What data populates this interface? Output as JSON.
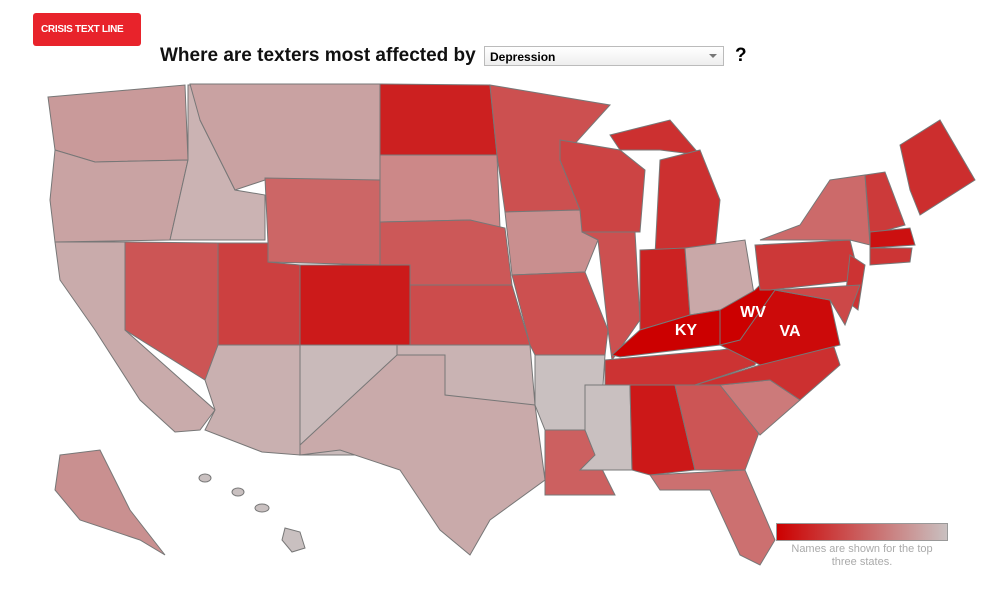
{
  "logo": "CRISIS TEXT LINE",
  "question": {
    "prefix": "Where are texters most affected by",
    "selected": "Depression",
    "suffix": "?"
  },
  "map": {
    "top_states": [
      "KY",
      "WV",
      "VA"
    ]
  },
  "legend": {
    "note": "Names are shown for the top three states."
  }
}
